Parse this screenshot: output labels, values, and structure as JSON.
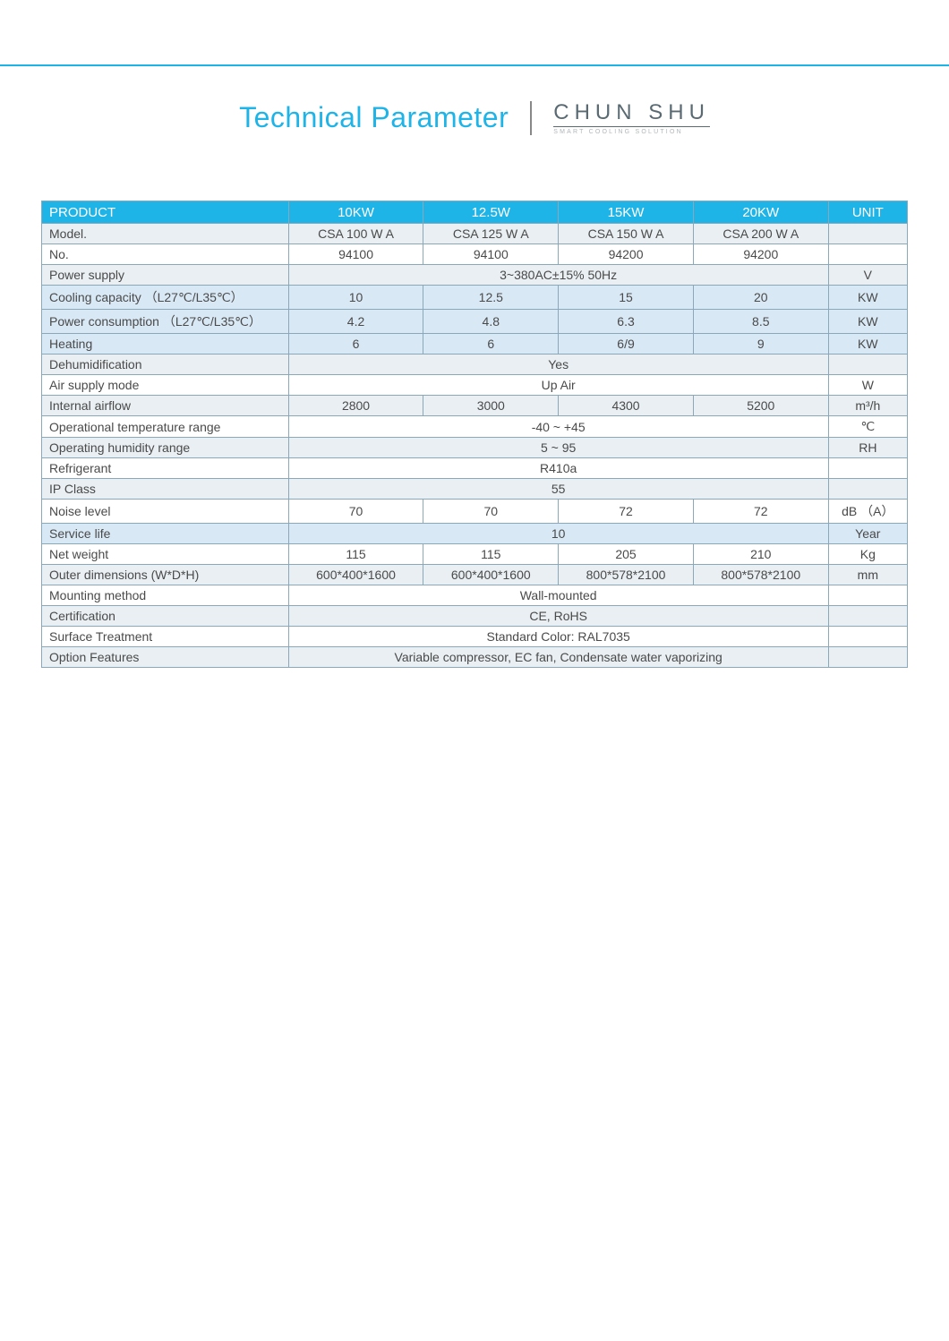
{
  "page": {
    "title": "Technical Parameter",
    "brand_name": "CHUN SHU",
    "brand_tagline": "SMART COOLING SOLUTION"
  },
  "colors": {
    "accent": "#1fb4e8",
    "border": "#8aa8b8",
    "row_even": "#e9eff2",
    "row_odd": "#ffffff",
    "row_blue": "#d9e8f5",
    "text": "#4a4a4a",
    "brand_text": "#5a6a72",
    "brand_tagline": "#b0b6b9"
  },
  "table": {
    "header": {
      "product": "PRODUCT",
      "cols": [
        "10KW",
        "12.5W",
        "15KW",
        "20KW"
      ],
      "unit": "UNIT"
    },
    "rows": [
      {
        "style": "even",
        "label": "Model.",
        "type": "4",
        "vals": [
          "CSA 100 W A",
          "CSA 125 W A",
          "CSA 150 W A",
          "CSA 200 W A"
        ],
        "unit": ""
      },
      {
        "style": "odd",
        "label": "No.",
        "type": "4",
        "vals": [
          "94100",
          "94100",
          "94200",
          "94200"
        ],
        "unit": ""
      },
      {
        "style": "even",
        "label": "Power supply",
        "type": "span",
        "val": "3~380AC±15% 50Hz",
        "unit": "V"
      },
      {
        "style": "blueish",
        "label": "Cooling capacity （L27℃/L35℃）",
        "type": "4",
        "vals": [
          "10",
          "12.5",
          "15",
          "20"
        ],
        "unit": "KW"
      },
      {
        "style": "blueish",
        "label": "Power consumption （L27℃/L35℃）",
        "type": "4",
        "vals": [
          "4.2",
          "4.8",
          "6.3",
          "8.5"
        ],
        "unit": "KW"
      },
      {
        "style": "blueish",
        "label": "Heating",
        "type": "4",
        "vals": [
          "6",
          "6",
          "6/9",
          "9"
        ],
        "unit": "KW"
      },
      {
        "style": "even",
        "label": "Dehumidification",
        "type": "span",
        "val": "Yes",
        "unit": ""
      },
      {
        "style": "odd",
        "label": "Air supply mode",
        "type": "span",
        "val": "Up Air",
        "unit": "W"
      },
      {
        "style": "even",
        "label": "Internal airflow",
        "type": "4",
        "vals": [
          "2800",
          "3000",
          "4300",
          "5200"
        ],
        "unit": "m³/h"
      },
      {
        "style": "odd",
        "label": "Operational temperature range",
        "type": "span",
        "val": "-40 ~ +45",
        "unit": "℃"
      },
      {
        "style": "even",
        "label": "Operating humidity range",
        "type": "span",
        "val": "5 ~ 95",
        "unit": "RH"
      },
      {
        "style": "odd",
        "label": "Refrigerant",
        "type": "span",
        "val": "R410a",
        "unit": ""
      },
      {
        "style": "even",
        "label": "IP Class",
        "type": "span",
        "val": "55",
        "unit": ""
      },
      {
        "style": "odd",
        "label": "Noise level",
        "type": "4",
        "vals": [
          "70",
          "70",
          "72",
          "72"
        ],
        "unit": "dB （A）"
      },
      {
        "style": "blueish",
        "label": "Service life",
        "type": "span",
        "val": "10",
        "unit": "Year"
      },
      {
        "style": "odd",
        "label": "Net weight",
        "type": "4",
        "vals": [
          "115",
          "115",
          "205",
          "210"
        ],
        "unit": "Kg"
      },
      {
        "style": "even",
        "label": "Outer dimensions (W*D*H)",
        "type": "4",
        "vals": [
          "600*400*1600",
          "600*400*1600",
          "800*578*2100",
          "800*578*2100"
        ],
        "unit": "mm"
      },
      {
        "style": "odd",
        "label": "Mounting method",
        "type": "span",
        "val": "Wall-mounted",
        "unit": ""
      },
      {
        "style": "even",
        "label": "Certification",
        "type": "span",
        "val": "CE, RoHS",
        "unit": ""
      },
      {
        "style": "odd",
        "label": "Surface Treatment",
        "type": "span",
        "val": "Standard Color: RAL7035",
        "unit": ""
      },
      {
        "style": "even",
        "label": "Option Features",
        "type": "span",
        "val": "Variable compressor, EC fan, Condensate water vaporizing",
        "unit": ""
      }
    ]
  }
}
